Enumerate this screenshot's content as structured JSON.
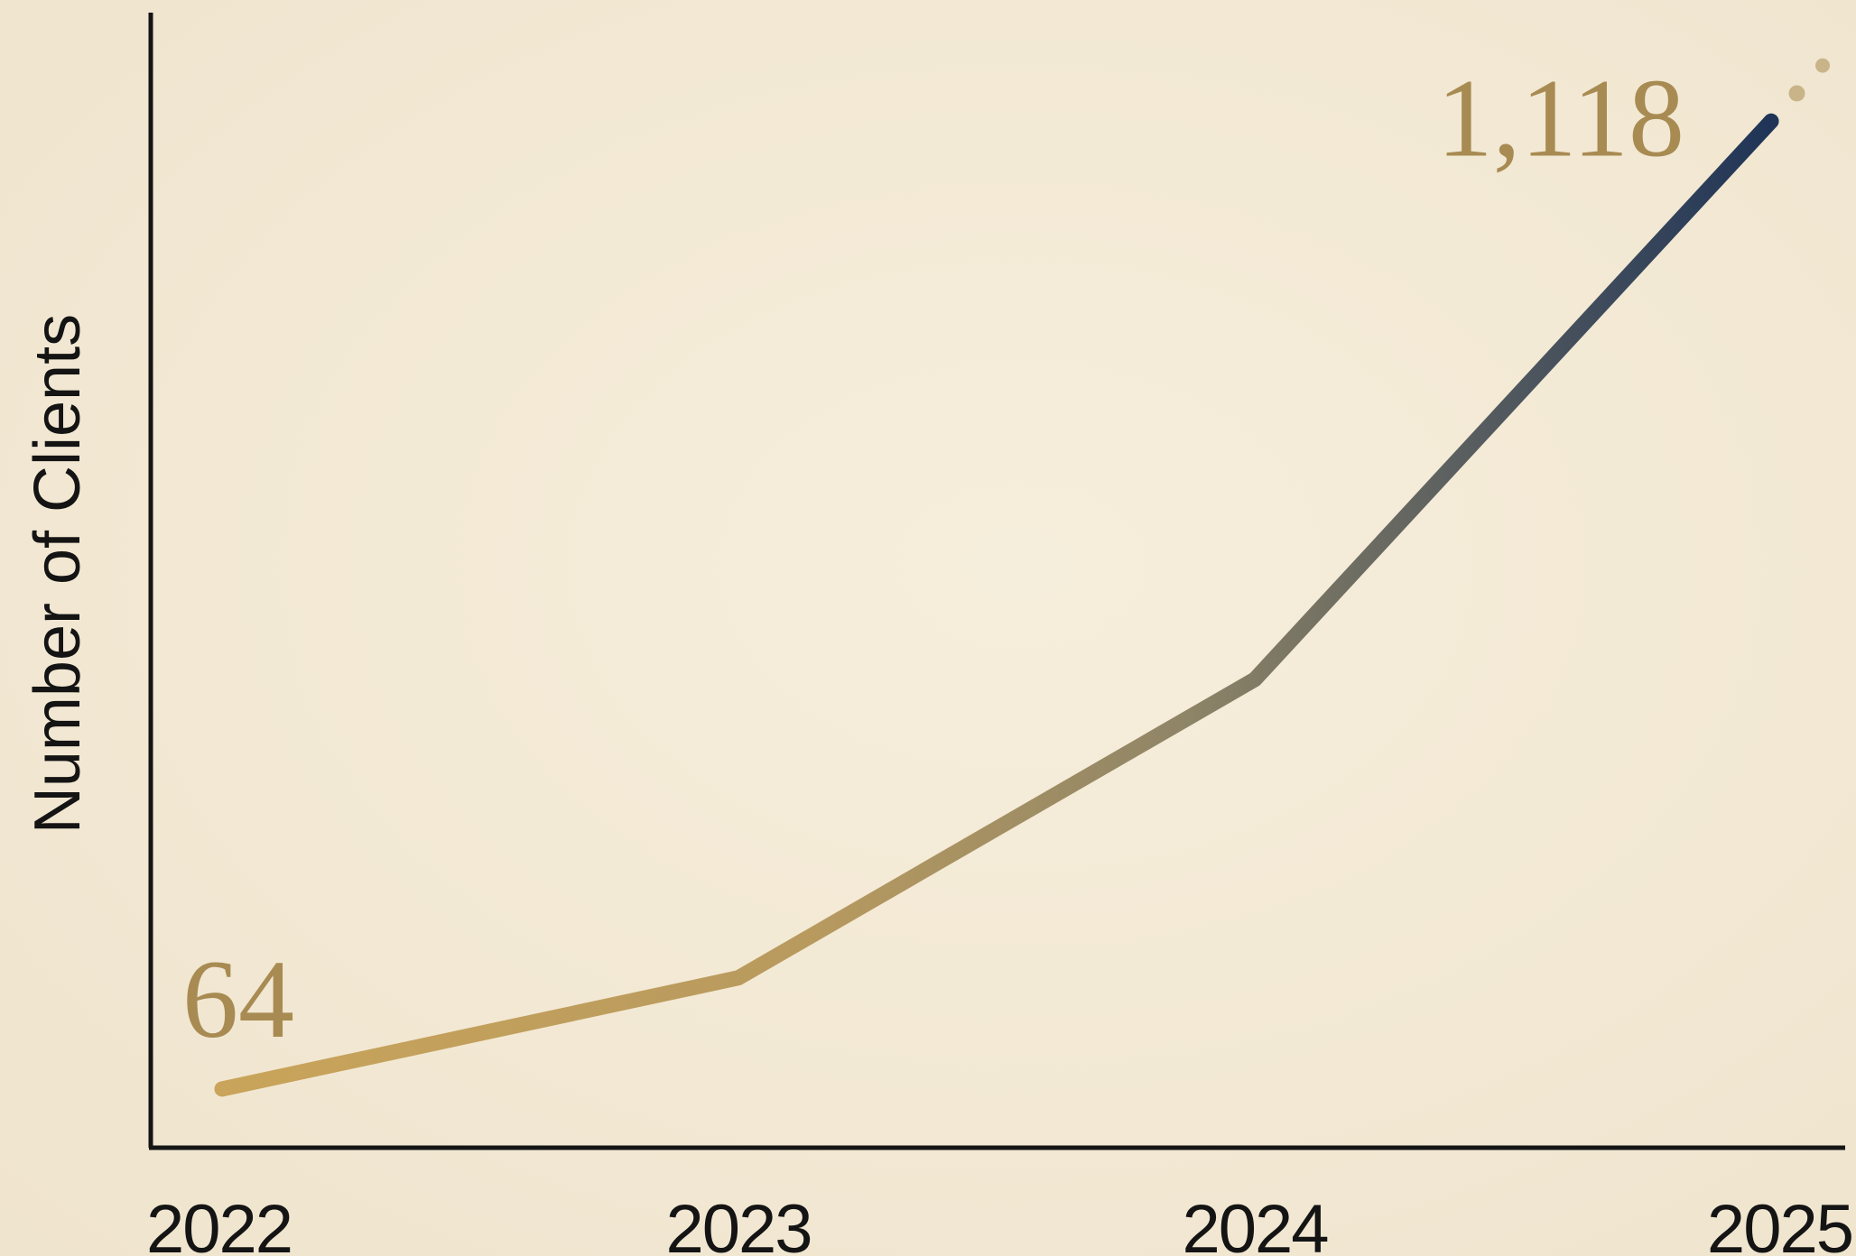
{
  "chart_data": {
    "type": "line",
    "title": "",
    "xlabel": "",
    "ylabel": "Number of Clients",
    "categories": [
      "2022",
      "2023",
      "2024",
      "2025"
    ],
    "x": [
      2022,
      2023,
      2024,
      2025
    ],
    "series": [
      {
        "values": [
          64,
          185,
          510,
          1118
        ]
      }
    ],
    "data_labels": [
      {
        "category": "2022",
        "text": "64"
      },
      {
        "category": "2025",
        "text": "1,118"
      }
    ],
    "ylim": [
      0,
      1250
    ],
    "grid": false,
    "legend": "none",
    "trend_continuation": "dotted",
    "colors": {
      "line_start": "#c9a45a",
      "line_mid": "#8f8567",
      "line_end": "#1f3457",
      "label": "#a88b52",
      "axis": "#151515",
      "background": "#f3ead7"
    }
  }
}
